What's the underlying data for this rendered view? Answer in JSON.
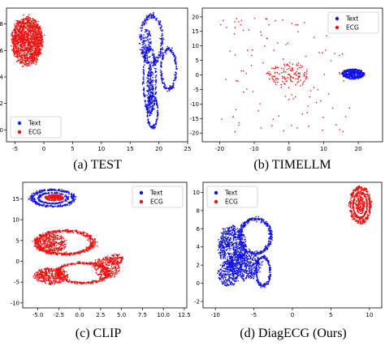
{
  "colors": {
    "text": "#1010e8",
    "ecg": "#ee1010",
    "frame": "#000000"
  },
  "chart_data": [
    {
      "type": "scatter",
      "caption": "(a) TEST",
      "xlim": [
        -6.5,
        25
      ],
      "ylim": [
        -0.9,
        9.2
      ],
      "xticks": [
        -5,
        0,
        5,
        10,
        15,
        20,
        25
      ],
      "yticks": [
        0,
        2,
        4,
        6,
        8
      ],
      "legend": {
        "placement": "bottom-left"
      },
      "series": [
        {
          "name": "Text",
          "color": "#1010e8",
          "regions": [
            {
              "shape": "loop",
              "cx": 18.7,
              "cy": 6.8,
              "rx": 1.9,
              "ry": 1.8,
              "n": 260
            },
            {
              "shape": "loop",
              "cx": 21.7,
              "cy": 4.6,
              "rx": 1.3,
              "ry": 1.5,
              "n": 200
            },
            {
              "shape": "loop",
              "cx": 18.4,
              "cy": 3.7,
              "rx": 1.1,
              "ry": 2.4,
              "n": 240
            },
            {
              "shape": "loop",
              "cx": 18.9,
              "cy": 1.4,
              "rx": 0.9,
              "ry": 1.2,
              "n": 160
            },
            {
              "shape": "blob",
              "cx": 17.9,
              "cy": 6.4,
              "rx": 0.8,
              "ry": 1.2,
              "n": 120
            },
            {
              "shape": "blob",
              "cx": 18.5,
              "cy": 3.2,
              "rx": 0.6,
              "ry": 1.6,
              "n": 200
            }
          ]
        },
        {
          "name": "ECG",
          "color": "#ee1010",
          "regions": [
            {
              "shape": "blob",
              "cx": -2.9,
              "cy": 6.7,
              "rx": 2.7,
              "ry": 1.8,
              "n": 1500
            }
          ]
        }
      ]
    },
    {
      "type": "scatter",
      "caption": "(b) TIMELLM",
      "xlim": [
        -25,
        27
      ],
      "ylim": [
        -23,
        23
      ],
      "xticks": [
        -20,
        -10,
        0,
        10,
        20
      ],
      "yticks": [
        -20,
        -15,
        -10,
        -5,
        0,
        5,
        10,
        15,
        20
      ],
      "legend": {
        "placement": "top-right"
      },
      "series": [
        {
          "name": "Text",
          "color": "#1010e8",
          "regions": [
            {
              "shape": "blob",
              "cx": 18.5,
              "cy": 0.3,
              "rx": 3.0,
              "ry": 1.4,
              "n": 300
            },
            {
              "shape": "loop",
              "cx": 18.5,
              "cy": 0.3,
              "rx": 3.0,
              "ry": 1.6,
              "n": 150
            }
          ]
        },
        {
          "name": "ECG",
          "color": "#ee1010",
          "regions": [
            {
              "shape": "blob",
              "cx": 0,
              "cy": 0,
              "rx": 6,
              "ry": 4.5,
              "n": 130
            },
            {
              "shape": "scatter",
              "cx": -1,
              "cy": 0,
              "rx": 19,
              "ry": 20,
              "n": 110
            }
          ]
        }
      ]
    },
    {
      "type": "scatter",
      "caption": "(c) CLIP",
      "xlim": [
        -6.8,
        12.8
      ],
      "ylim": [
        -11.2,
        19
      ],
      "xticks": [
        -5.0,
        -2.5,
        0.0,
        2.5,
        5.0,
        7.5,
        10.0,
        12.5
      ],
      "yticks": [
        -10,
        -5,
        0,
        5,
        10,
        15
      ],
      "legend": {
        "placement": "top-right"
      },
      "series": [
        {
          "name": "Text",
          "color": "#1010e8",
          "regions": [
            {
              "shape": "loop",
              "cx": -3.2,
              "cy": 15.2,
              "rx": 2.5,
              "ry": 2.0,
              "n": 320
            },
            {
              "shape": "loop",
              "cx": -3.2,
              "cy": 15.2,
              "rx": 1.7,
              "ry": 1.3,
              "n": 180
            }
          ]
        },
        {
          "name": "ECG",
          "color": "#ee1010",
          "regions": [
            {
              "shape": "blob",
              "cx": -3.0,
              "cy": 15.3,
              "rx": 1.1,
              "ry": 0.8,
              "n": 220
            },
            {
              "shape": "loop",
              "cx": -1.8,
              "cy": 4.5,
              "rx": 3.4,
              "ry": 2.8,
              "n": 550
            },
            {
              "shape": "blob",
              "cx": -3.4,
              "cy": 4.2,
              "rx": 1.8,
              "ry": 2.3,
              "n": 350
            },
            {
              "shape": "loop",
              "cx": 0.4,
              "cy": -2.8,
              "rx": 3.0,
              "ry": 2.4,
              "n": 450
            },
            {
              "shape": "blob",
              "cx": -3.4,
              "cy": -3.5,
              "rx": 2.0,
              "ry": 2.0,
              "n": 380
            },
            {
              "shape": "blob",
              "cx": 3.2,
              "cy": -1.5,
              "rx": 1.6,
              "ry": 2.5,
              "n": 280
            },
            {
              "shape": "blob",
              "cx": 4.4,
              "cy": 0.6,
              "rx": 0.8,
              "ry": 1.2,
              "n": 90
            }
          ]
        }
      ]
    },
    {
      "type": "scatter",
      "caption": "(d) DiagECG (Ours)",
      "xlim": [
        -11.6,
        11.6
      ],
      "ylim": [
        -2.7,
        11.1
      ],
      "xticks": [
        -10,
        -5,
        0,
        5,
        10
      ],
      "yticks": [
        -2,
        0,
        2,
        4,
        6,
        8,
        10
      ],
      "legend": {
        "placement": "top-left"
      },
      "series": [
        {
          "name": "Text",
          "color": "#1010e8",
          "regions": [
            {
              "shape": "loop",
              "cx": -4.8,
              "cy": 5.2,
              "rx": 2.0,
              "ry": 1.9,
              "n": 360
            },
            {
              "shape": "blob",
              "cx": -7.8,
              "cy": 4.1,
              "rx": 1.8,
              "ry": 2.2,
              "n": 600
            },
            {
              "shape": "blob",
              "cx": -6.3,
              "cy": 2.0,
              "rx": 2.2,
              "ry": 1.6,
              "n": 500
            },
            {
              "shape": "loop",
              "cx": -3.8,
              "cy": 1.3,
              "rx": 0.9,
              "ry": 1.6,
              "n": 220
            },
            {
              "shape": "blob",
              "cx": -8.3,
              "cy": 1.0,
              "rx": 1.4,
              "ry": 1.3,
              "n": 260
            }
          ]
        },
        {
          "name": "ECG",
          "color": "#ee1010",
          "regions": [
            {
              "shape": "loop",
              "cx": 8.8,
              "cy": 8.6,
              "rx": 1.3,
              "ry": 1.9,
              "n": 300
            },
            {
              "shape": "loop",
              "cx": 8.8,
              "cy": 8.6,
              "rx": 0.9,
              "ry": 1.4,
              "n": 250
            },
            {
              "shape": "blob",
              "cx": 8.8,
              "cy": 8.6,
              "rx": 0.6,
              "ry": 1.0,
              "n": 150
            }
          ]
        }
      ]
    }
  ]
}
